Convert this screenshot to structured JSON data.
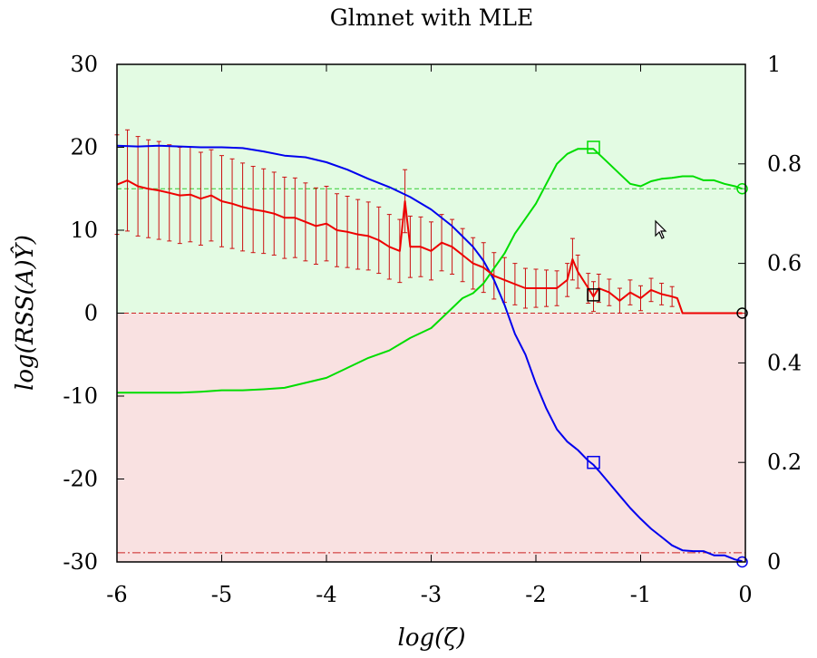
{
  "chart_data": {
    "type": "line",
    "title": "Glmnet with MLE",
    "xlabel": "log(ζ)",
    "ylabel": "log(RSS(A)Ŷ)",
    "xlim": [
      -6,
      0
    ],
    "ylim": [
      -30,
      30
    ],
    "y2lim": [
      0,
      1
    ],
    "x_ticks": [
      "-6",
      "-5",
      "-4",
      "-3",
      "-2",
      "-1",
      "0"
    ],
    "y_ticks": [
      "-30",
      "-20",
      "-10",
      "0",
      "10",
      "20",
      "30"
    ],
    "y2_ticks": [
      "0",
      "0.2",
      "0.4",
      "0.6",
      "0.8",
      "1"
    ],
    "grid": false,
    "regions": [
      {
        "axis": "left",
        "y0": 0,
        "y1": 30,
        "color": "#e3fbe3"
      },
      {
        "axis": "left",
        "y0": -30,
        "y1": 0,
        "color": "#f9e1e1"
      }
    ],
    "reference_lines": [
      {
        "axis": "left",
        "y": 15,
        "color": "#33cc33",
        "style": "dashed"
      },
      {
        "axis": "left",
        "y": 0,
        "color": "#cc2222",
        "style": "dashed"
      },
      {
        "axis": "left",
        "y": -28.9,
        "color": "#cc2222",
        "style": "dashdot"
      }
    ],
    "series": [
      {
        "axis": "left",
        "color": "#0000ee",
        "x": [
          -6,
          -5.8,
          -5.6,
          -5.4,
          -5.2,
          -5.0,
          -4.8,
          -4.6,
          -4.4,
          -4.2,
          -4.0,
          -3.8,
          -3.6,
          -3.4,
          -3.2,
          -3.0,
          -2.8,
          -2.6,
          -2.5,
          -2.4,
          -2.3,
          -2.2,
          -2.1,
          -2.0,
          -1.9,
          -1.8,
          -1.7,
          -1.6,
          -1.5,
          -1.45,
          -1.4,
          -1.3,
          -1.2,
          -1.1,
          -1.0,
          -0.9,
          -0.8,
          -0.7,
          -0.6,
          -0.5,
          -0.4,
          -0.3,
          -0.2,
          -0.1,
          -0.03
        ],
        "y": [
          20.2,
          20.1,
          20.2,
          20.1,
          20.0,
          20.0,
          19.9,
          19.5,
          19.0,
          18.8,
          18.2,
          17.3,
          16.2,
          15.2,
          14.0,
          12.5,
          10.5,
          8.0,
          6.3,
          4.0,
          1.0,
          -2.5,
          -5.0,
          -8.5,
          -11.5,
          -14.0,
          -15.5,
          -16.5,
          -17.8,
          -18.3,
          -19.0,
          -20.5,
          -22.0,
          -23.5,
          -24.8,
          -26.0,
          -27.0,
          -28.0,
          -28.6,
          -28.7,
          -28.7,
          -29.2,
          -29.2,
          -29.7,
          -29.9
        ]
      },
      {
        "axis": "right",
        "color": "#00dd00",
        "x": [
          -6,
          -5.8,
          -5.6,
          -5.4,
          -5.2,
          -5.0,
          -4.8,
          -4.6,
          -4.4,
          -4.2,
          -4.0,
          -3.8,
          -3.6,
          -3.4,
          -3.2,
          -3.0,
          -2.9,
          -2.8,
          -2.7,
          -2.6,
          -2.5,
          -2.4,
          -2.3,
          -2.2,
          -2.1,
          -2.0,
          -1.9,
          -1.8,
          -1.7,
          -1.6,
          -1.5,
          -1.45,
          -1.4,
          -1.3,
          -1.2,
          -1.1,
          -1.0,
          -0.9,
          -0.8,
          -0.7,
          -0.6,
          -0.5,
          -0.4,
          -0.3,
          -0.2,
          -0.1,
          -0.03
        ],
        "y": [
          0.34,
          0.34,
          0.34,
          0.34,
          0.342,
          0.345,
          0.345,
          0.347,
          0.35,
          0.36,
          0.37,
          0.39,
          0.41,
          0.425,
          0.45,
          0.47,
          0.49,
          0.51,
          0.53,
          0.54,
          0.56,
          0.59,
          0.62,
          0.66,
          0.69,
          0.72,
          0.76,
          0.8,
          0.82,
          0.83,
          0.83,
          0.83,
          0.82,
          0.8,
          0.78,
          0.76,
          0.755,
          0.765,
          0.77,
          0.772,
          0.775,
          0.775,
          0.767,
          0.767,
          0.76,
          0.755,
          0.75
        ]
      },
      {
        "axis": "left",
        "color": "#ee0000",
        "x": [
          -6,
          -5.9,
          -5.8,
          -5.7,
          -5.6,
          -5.5,
          -5.4,
          -5.3,
          -5.2,
          -5.1,
          -5.0,
          -4.9,
          -4.8,
          -4.7,
          -4.6,
          -4.5,
          -4.4,
          -4.3,
          -4.2,
          -4.1,
          -4.0,
          -3.9,
          -3.8,
          -3.7,
          -3.6,
          -3.5,
          -3.4,
          -3.3,
          -3.25,
          -3.2,
          -3.1,
          -3.0,
          -2.9,
          -2.8,
          -2.7,
          -2.6,
          -2.5,
          -2.4,
          -2.3,
          -2.2,
          -2.1,
          -2.0,
          -1.9,
          -1.8,
          -1.7,
          -1.65,
          -1.6,
          -1.5,
          -1.45,
          -1.4,
          -1.3,
          -1.2,
          -1.1,
          -1.0,
          -0.9,
          -0.8,
          -0.7,
          -0.65,
          -0.6,
          -0.5,
          -0.4,
          -0.3,
          -0.2,
          -0.1,
          -0.03
        ],
        "y": [
          15.5,
          16.0,
          15.3,
          15.0,
          14.8,
          14.5,
          14.2,
          14.3,
          13.8,
          14.2,
          13.5,
          13.2,
          12.8,
          12.5,
          12.3,
          12.0,
          11.5,
          11.5,
          11.0,
          10.5,
          10.8,
          10.0,
          9.8,
          9.5,
          9.3,
          8.8,
          8.0,
          7.5,
          13.5,
          8.0,
          8.0,
          7.5,
          8.5,
          8.0,
          7.0,
          6.0,
          5.5,
          4.5,
          4.0,
          3.5,
          3.0,
          3.0,
          3.0,
          3.0,
          4.0,
          6.5,
          5.0,
          3.0,
          2.0,
          3.0,
          2.5,
          1.5,
          2.5,
          1.8,
          2.8,
          2.3,
          2.0,
          1.8,
          0.0,
          0.0,
          0.0,
          0.0,
          0.0,
          0.0,
          0.0
        ],
        "error_bars": [
          6.0,
          6.1,
          6.0,
          5.9,
          5.9,
          5.8,
          5.8,
          5.7,
          5.6,
          5.5,
          5.5,
          5.4,
          5.3,
          5.2,
          5.1,
          5.0,
          4.9,
          4.8,
          4.7,
          4.6,
          4.5,
          4.4,
          4.3,
          4.2,
          4.1,
          4.0,
          3.9,
          3.8,
          3.8,
          3.7,
          3.6,
          3.5,
          3.4,
          3.3,
          3.2,
          3.1,
          3.0,
          2.8,
          2.7,
          2.5,
          2.4,
          2.3,
          2.2,
          2.1,
          2.0,
          2.5,
          2.0,
          1.8,
          1.8,
          1.7,
          1.6,
          1.5,
          1.5,
          1.5,
          1.4,
          1.3,
          1.2,
          0,
          0,
          0,
          0,
          0,
          0,
          0,
          0
        ]
      }
    ],
    "markers": [
      {
        "axis": "left",
        "x": -1.45,
        "y": 20,
        "shape": "square",
        "color": "#00dd00"
      },
      {
        "axis": "left",
        "x": -1.45,
        "y": -18,
        "shape": "square",
        "color": "#0000ee"
      },
      {
        "axis": "left",
        "x": -1.45,
        "y": 2.2,
        "shape": "square",
        "color": "#000000"
      },
      {
        "axis": "left",
        "x": -0.03,
        "y": 15,
        "shape": "circle",
        "color": "#00dd00"
      },
      {
        "axis": "left",
        "x": -0.03,
        "y": 0,
        "shape": "circle",
        "color": "#000000"
      },
      {
        "axis": "left",
        "x": -0.03,
        "y": -30,
        "shape": "circle",
        "color": "#0000ee"
      }
    ]
  }
}
